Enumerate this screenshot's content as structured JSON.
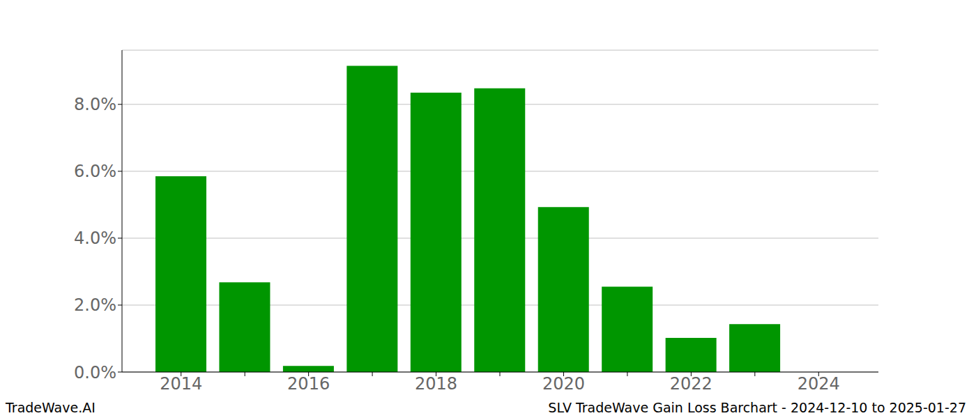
{
  "chart_data": {
    "type": "bar",
    "title": "SLV TradeWave Gain Loss Barchart - 2024-12-10 to 2025-01-27",
    "annotations": [
      "TradeWave.AI"
    ],
    "categories": [
      "2014",
      null,
      "2016",
      null,
      "2018",
      null,
      "2020",
      null,
      "2022",
      null,
      "2024"
    ],
    "values": [
      5.85,
      2.68,
      0.18,
      9.15,
      8.35,
      8.48,
      4.93,
      2.55,
      1.02,
      1.43,
      0
    ],
    "color": "#009600",
    "ylim": [
      0,
      9.62
    ],
    "yticks": [
      {
        "value": 0,
        "label": "0.0%"
      },
      {
        "value": 2,
        "label": "2.0%"
      },
      {
        "value": 4,
        "label": "4.0%"
      },
      {
        "value": 6,
        "label": "6.0%"
      },
      {
        "value": 8,
        "label": "8.0%"
      }
    ],
    "grid": true
  }
}
